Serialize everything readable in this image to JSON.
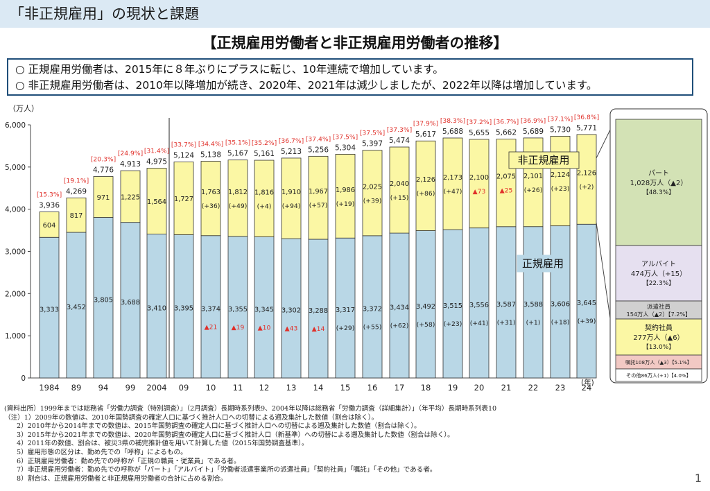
{
  "header": {
    "title": "「非正規雇用」の現状と課題"
  },
  "subtitle": "【正規雇用労働者と非正規雇用労働者の推移】",
  "summary": [
    "○ 正規雇用労働者は、2015年に８年ぶりにプラスに転じ、10年連続で増加しています。",
    "○ 非正規雇用労働者は、2010年以降増加が続き、2020年、2021年は減少しましたが、2022年以降は増加しています。"
  ],
  "chart_data": {
    "type": "bar",
    "stacked": true,
    "unit_label": "（万人）",
    "x_unit": "(年)",
    "ylim": [
      0,
      6000
    ],
    "yticks": [
      "0",
      "1,000",
      "2,000",
      "3,000",
      "4,000",
      "5,000",
      "6,000"
    ],
    "categories": [
      "1984",
      "89",
      "94",
      "99",
      "2004",
      "09",
      "10",
      "11",
      "12",
      "13",
      "14",
      "15",
      "16",
      "17",
      "18",
      "19",
      "20",
      "21",
      "22",
      "23",
      "24"
    ],
    "series": [
      {
        "name": "正規雇用",
        "color": "#b9d7e6",
        "values": [
          3333,
          3452,
          3805,
          3688,
          3410,
          3395,
          3374,
          3355,
          3345,
          3302,
          3288,
          3317,
          3372,
          3434,
          3492,
          3515,
          3556,
          3587,
          3588,
          3606,
          3645
        ],
        "labels": [
          "3,333",
          "3,452",
          "3,805",
          "3,688",
          "3,410",
          "3,395",
          "3,374",
          "3,355",
          "3,345",
          "3,302",
          "3,288",
          "3,317",
          "3,372",
          "3,434",
          "3,492",
          "3,515",
          "3,556",
          "3,587",
          "3,588",
          "3,606",
          "3,645"
        ],
        "changes": [
          "",
          "",
          "",
          "",
          "",
          "",
          "▲21",
          "▲19",
          "▲10",
          "▲43",
          "▲14",
          "(+29)",
          "(+55)",
          "(+62)",
          "(+58)",
          "(+23)",
          "(+41)",
          "(+31)",
          "(+1)",
          "(+18)",
          "(+39)"
        ]
      },
      {
        "name": "非正規雇用",
        "color": "#fbf7a4",
        "values": [
          604,
          817,
          971,
          1225,
          1564,
          1727,
          1763,
          1812,
          1816,
          1910,
          1967,
          1986,
          2025,
          2040,
          2126,
          2173,
          2100,
          2075,
          2101,
          2124,
          2126
        ],
        "labels": [
          "604",
          "817",
          "971",
          "1,225",
          "1,564",
          "1,727",
          "1,763",
          "1,812",
          "1,816",
          "1,910",
          "1,967",
          "1,986",
          "2,025",
          "2,040",
          "2,126",
          "2,173",
          "2,100",
          "2,075",
          "2,101",
          "2,124",
          "2,126"
        ],
        "changes": [
          "",
          "",
          "",
          "",
          "",
          "",
          "(+36)",
          "(+49)",
          "(+4)",
          "(+94)",
          "(+57)",
          "(+19)",
          "(+39)",
          "(+15)",
          "(+86)",
          "(+47)",
          "▲73",
          "▲25",
          "(+26)",
          "(+23)",
          "(+2)"
        ]
      }
    ],
    "totals": [
      "3,936",
      "4,269",
      "4,776",
      "4,913",
      "4,975",
      "5,124",
      "5,138",
      "5,167",
      "5,161",
      "5,213",
      "5,256",
      "5,304",
      "5,397",
      "5,474",
      "5,617",
      "5,688",
      "5,655",
      "5,662",
      "5,689",
      "5,730",
      "5,771"
    ],
    "total_values": [
      3936,
      4269,
      4776,
      4913,
      4975,
      5124,
      5138,
      5167,
      5161,
      5213,
      5256,
      5304,
      5397,
      5474,
      5617,
      5688,
      5655,
      5662,
      5689,
      5730,
      5771
    ],
    "ratios": [
      "[15.3%]",
      "[19.1%]",
      "[20.3%]",
      "[24.9%]",
      "[31.4%]",
      "[33.7%]",
      "[34.4%]",
      "[35.1%]",
      "[35.2%]",
      "[36.7%]",
      "[37.4%]",
      "[37.5%]",
      "[37.5%]",
      "[37.3%]",
      "[37.9%]",
      "[38.3%]",
      "[37.2%]",
      "[36.7%]",
      "[36.9%]",
      "[37.1%]",
      "[36.8%]"
    ],
    "breakdown_2024": [
      {
        "name": "パート",
        "amount": "1,028万人（▲2）",
        "share": "【48.3%】",
        "value": 1028,
        "color": "#d3e2b5"
      },
      {
        "name": "アルバイト",
        "amount": "474万人（+15）",
        "share": "【22.3%】",
        "value": 474,
        "color": "#e6e0f0"
      },
      {
        "name": "派遣社員",
        "amount": "154万人（▲2）【7.2%】",
        "share": "",
        "value": 154,
        "color": "#d0d0d0"
      },
      {
        "name": "契約社員",
        "amount": "277万人（▲6）",
        "share": "【13.0%】",
        "value": 277,
        "color": "#fbf7a4"
      },
      {
        "name": "嘱託",
        "amount": "108万人（▲3）【5.1%】",
        "share": "",
        "value": 108,
        "color": "#f2c9c4"
      },
      {
        "name": "その他",
        "amount": "86万人(+1)【4.0%】",
        "share": "",
        "value": 86,
        "color": "#ffffff"
      }
    ]
  },
  "notes": {
    "source": "(資料出所）1999年までは総務省「労働力調査（特別調査）」（2月調査）長期時系列表9、2004年以降は総務省「労働力調査（詳細集計）」（年平均）長期時系列表10",
    "items": [
      "（注）1）2009年の数値は、2010年国勢調査の確定人口に基づく推計人口への切替による遡及集計した数値（割合は除く）。",
      "2）2010年から2014年までの数値は、2015年国勢調査の確定人口に基づく推計人口への切替による遡及集計した数値（割合は除く）。",
      "3）2015年から2021年までの数値は、2020年国勢調査の確定人口に基づく推計人口（新基準）への切替による遡及集計した数値（割合は除く）。",
      "4）2011年の数値、割合は、被災3県の補完推計値を用いて計算した値（2015年国勢調査基準）。",
      "5）雇用形態の区分は、勤め先での「呼称」によるもの。",
      "6）正規雇用労働者：勤め先での呼称が「正規の職員・従業員」である者。",
      "7）非正規雇用労働者：勤め先での呼称が「パート」「アルバイト」「労働者派遣事業所の派遣社員」「契約社員」「嘱託」「その他」である者。",
      "8）割合は、正規雇用労働者と非正規雇用労働者の合計に占める割合。"
    ]
  },
  "page_number": "1",
  "colors": {
    "regular": "#b9d7e6",
    "nonregular": "#fbf7a4",
    "ratio_text": "#e0302a",
    "decrease_text": "#e0302a"
  }
}
